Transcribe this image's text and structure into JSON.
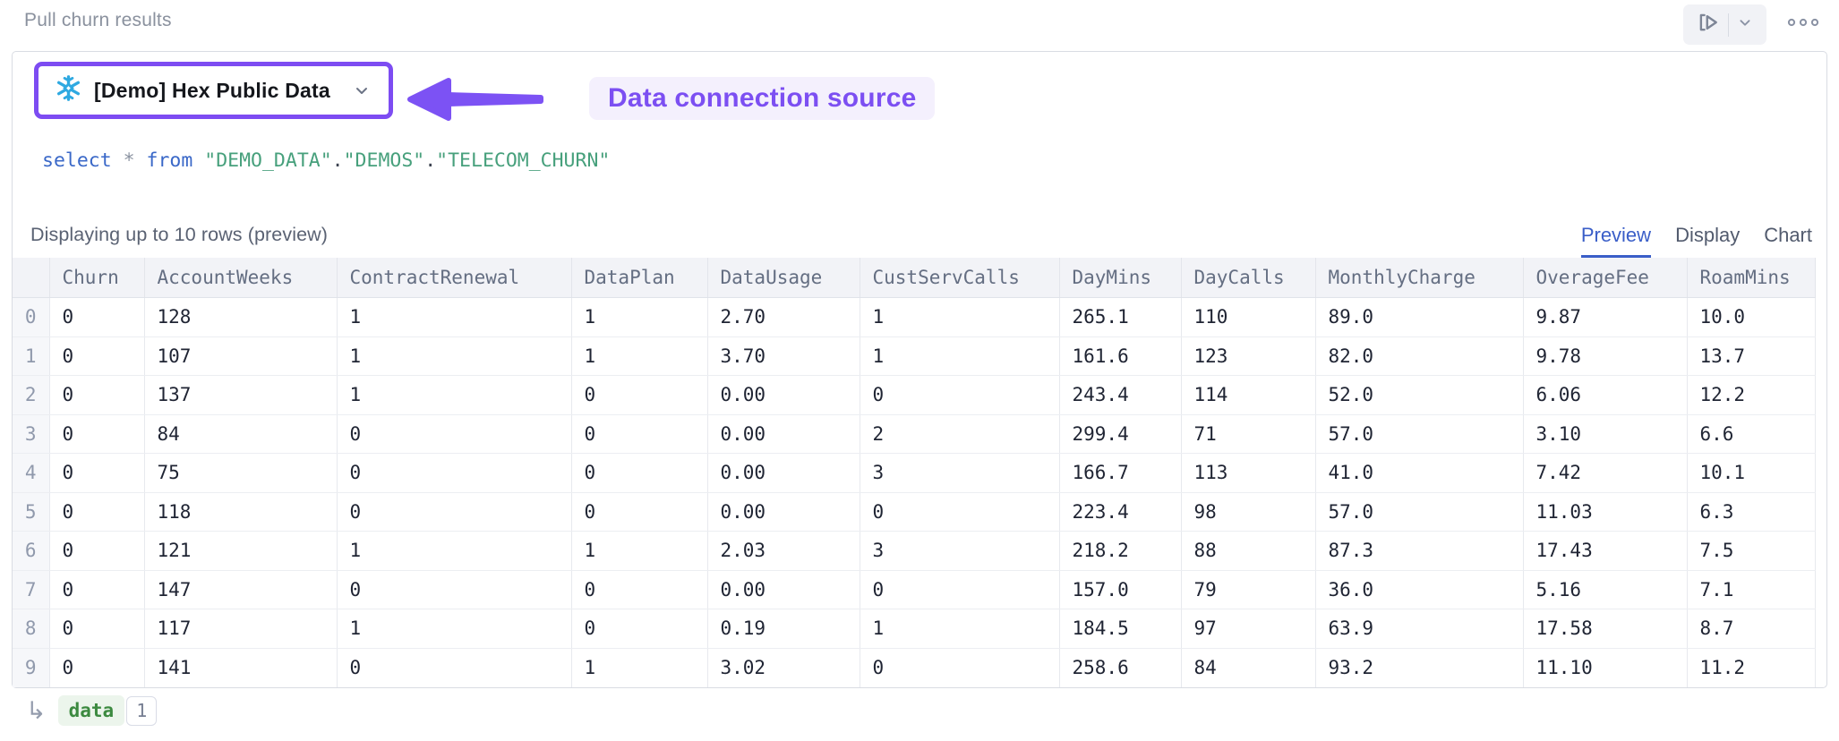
{
  "cell": {
    "title": "Pull churn results"
  },
  "toolbar": {
    "run_icon": "run-cell",
    "run_caret_icon": "chevron-down",
    "more_icon": "more-options"
  },
  "connection": {
    "icon": "snowflake",
    "name": "[Demo] Hex Public Data"
  },
  "annotation": {
    "label": "Data connection source",
    "color": "#7c4ff2"
  },
  "sql": {
    "tokens": [
      {
        "text": "select",
        "cls": "kw"
      },
      {
        "text": " ",
        "cls": "plain"
      },
      {
        "text": "*",
        "cls": "op"
      },
      {
        "text": " ",
        "cls": "plain"
      },
      {
        "text": "from",
        "cls": "kw"
      },
      {
        "text": " ",
        "cls": "plain"
      },
      {
        "text": "\"DEMO_DATA\"",
        "cls": "str"
      },
      {
        "text": ".",
        "cls": "plain"
      },
      {
        "text": "\"DEMOS\"",
        "cls": "str"
      },
      {
        "text": ".",
        "cls": "plain"
      },
      {
        "text": "\"TELECOM_CHURN\"",
        "cls": "str"
      }
    ]
  },
  "results": {
    "status": "Displaying up to 10 rows (preview)",
    "tabs": [
      {
        "label": "Preview",
        "active": true
      },
      {
        "label": "Display",
        "active": false
      },
      {
        "label": "Chart",
        "active": false
      }
    ]
  },
  "table": {
    "index": [
      "0",
      "1",
      "2",
      "3",
      "4",
      "5",
      "6",
      "7",
      "8",
      "9"
    ],
    "columns": [
      "Churn",
      "AccountWeeks",
      "ContractRenewal",
      "DataPlan",
      "DataUsage",
      "CustServCalls",
      "DayMins",
      "DayCalls",
      "MonthlyCharge",
      "OverageFee",
      "RoamMins"
    ],
    "rows": [
      [
        "0",
        "128",
        "1",
        "1",
        "2.70",
        "1",
        "265.1",
        "110",
        "89.0",
        "9.87",
        "10.0"
      ],
      [
        "0",
        "107",
        "1",
        "1",
        "3.70",
        "1",
        "161.6",
        "123",
        "82.0",
        "9.78",
        "13.7"
      ],
      [
        "0",
        "137",
        "1",
        "0",
        "0.00",
        "0",
        "243.4",
        "114",
        "52.0",
        "6.06",
        "12.2"
      ],
      [
        "0",
        "84",
        "0",
        "0",
        "0.00",
        "2",
        "299.4",
        "71",
        "57.0",
        "3.10",
        "6.6"
      ],
      [
        "0",
        "75",
        "0",
        "0",
        "0.00",
        "3",
        "166.7",
        "113",
        "41.0",
        "7.42",
        "10.1"
      ],
      [
        "0",
        "118",
        "0",
        "0",
        "0.00",
        "0",
        "223.4",
        "98",
        "57.0",
        "11.03",
        "6.3"
      ],
      [
        "0",
        "121",
        "1",
        "1",
        "2.03",
        "3",
        "218.2",
        "88",
        "87.3",
        "17.43",
        "7.5"
      ],
      [
        "0",
        "147",
        "0",
        "0",
        "0.00",
        "0",
        "157.0",
        "79",
        "36.0",
        "5.16",
        "7.1"
      ],
      [
        "0",
        "117",
        "1",
        "0",
        "0.19",
        "1",
        "184.5",
        "97",
        "63.9",
        "17.58",
        "8.7"
      ],
      [
        "0",
        "141",
        "0",
        "1",
        "3.02",
        "0",
        "258.6",
        "84",
        "93.2",
        "11.10",
        "11.2"
      ]
    ]
  },
  "footer": {
    "return_icon": "↳",
    "variable": "data",
    "count": "1"
  },
  "colors": {
    "annotation_purple": "#7c4ff2",
    "snowflake_blue": "#2fa9e1",
    "sql_keyword": "#3a68c8",
    "sql_string": "#47a07c",
    "tab_active": "#3a5ec8",
    "variable_green": "#3c8a40"
  }
}
